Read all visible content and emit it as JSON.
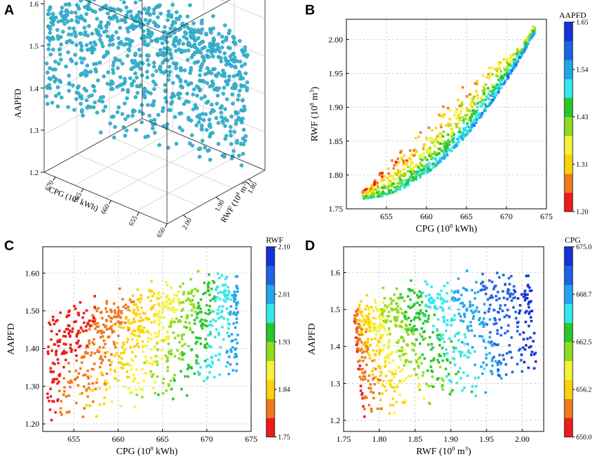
{
  "panel_letters": {
    "a": "A",
    "b": "B",
    "c": "C",
    "d": "D"
  },
  "chart_data": [
    {
      "id": "A",
      "type": "scatter3d",
      "axes": {
        "vertical": {
          "label": "AAPFD",
          "ticks": [
            "1.2",
            "1.3",
            "1.4",
            "1.5",
            "1.6"
          ],
          "range": [
            1.2,
            1.65
          ]
        },
        "cpg": {
          "label": "CPG (10",
          "sup": "8",
          "tail": " kWh)",
          "ticks": [
            "670",
            "665",
            "660",
            "655",
            "650"
          ]
        },
        "rwf": {
          "label": "RWF (10",
          "sup": "8",
          "tail": " m",
          "sup2": "3",
          "tail2": ")",
          "ticks": [
            "1.80",
            "1.90",
            "2.00"
          ]
        }
      },
      "marker_color": "#39b6d2",
      "point_count": 950
    },
    {
      "id": "B",
      "type": "scatter",
      "xlabel": {
        "main": "CPG (10",
        "sup": "8",
        "tail": " kWh)"
      },
      "ylabel": {
        "main": "RWF (10",
        "sup": "8",
        "tail": " m",
        "sup2": "3",
        "tail2": ")"
      },
      "xlim": [
        650,
        675
      ],
      "ylim": [
        1.75,
        2.03
      ],
      "xticks": [
        "655",
        "660",
        "665",
        "670",
        "675"
      ],
      "yticks": [
        "1.75",
        "1.80",
        "1.85",
        "1.90",
        "1.95",
        "2.00"
      ],
      "color_by": "AAPFD",
      "colorbar": {
        "title": "AAPFD",
        "ticks": [
          "1.65",
          "1.54",
          "1.43",
          "1.31",
          "1.20"
        ],
        "range": [
          1.2,
          1.65
        ]
      },
      "grid": "dashed"
    },
    {
      "id": "C",
      "type": "scatter",
      "xlabel": {
        "main": "CPG (10",
        "sup": "8",
        "tail": " kWh)"
      },
      "ylabel": {
        "main": "AAPFD"
      },
      "xlim": [
        651.5,
        675
      ],
      "ylim": [
        1.18,
        1.67
      ],
      "xticks": [
        "655",
        "660",
        "665",
        "670",
        "675"
      ],
      "yticks": [
        "1.20",
        "1.30",
        "1.40",
        "1.50",
        "1.60"
      ],
      "color_by": "RWF",
      "colorbar": {
        "title": "RWF",
        "ticks": [
          "2.10",
          "2.01",
          "1.93",
          "1.84",
          "1.75"
        ],
        "range": [
          1.75,
          2.1
        ]
      },
      "grid": "dashed"
    },
    {
      "id": "D",
      "type": "scatter",
      "xlabel": {
        "main": "RWF (10",
        "sup": "8",
        "tail": " m",
        "sup2": "3",
        "tail2": ")"
      },
      "ylabel": {
        "main": "AAPFD"
      },
      "xlim": [
        1.75,
        2.03
      ],
      "ylim": [
        1.17,
        1.67
      ],
      "xticks": [
        "1.75",
        "1.80",
        "1.85",
        "1.90",
        "1.95",
        "2.00"
      ],
      "yticks": [
        "1.2",
        "1.3",
        "1.4",
        "1.5",
        "1.6"
      ],
      "color_by": "CPG",
      "colorbar": {
        "title": "CPG",
        "ticks": [
          "675.00",
          "668.75",
          "662.50",
          "656.25",
          "650.00"
        ],
        "range": [
          650,
          675
        ]
      },
      "grid": "dashed"
    }
  ],
  "colormap": [
    "#ee1c1c",
    "#f07a1c",
    "#fbd30b",
    "#f6f23a",
    "#8fdc1e",
    "#29c72a",
    "#33e8e8",
    "#21a7ee",
    "#1e63e6",
    "#1432d8"
  ]
}
